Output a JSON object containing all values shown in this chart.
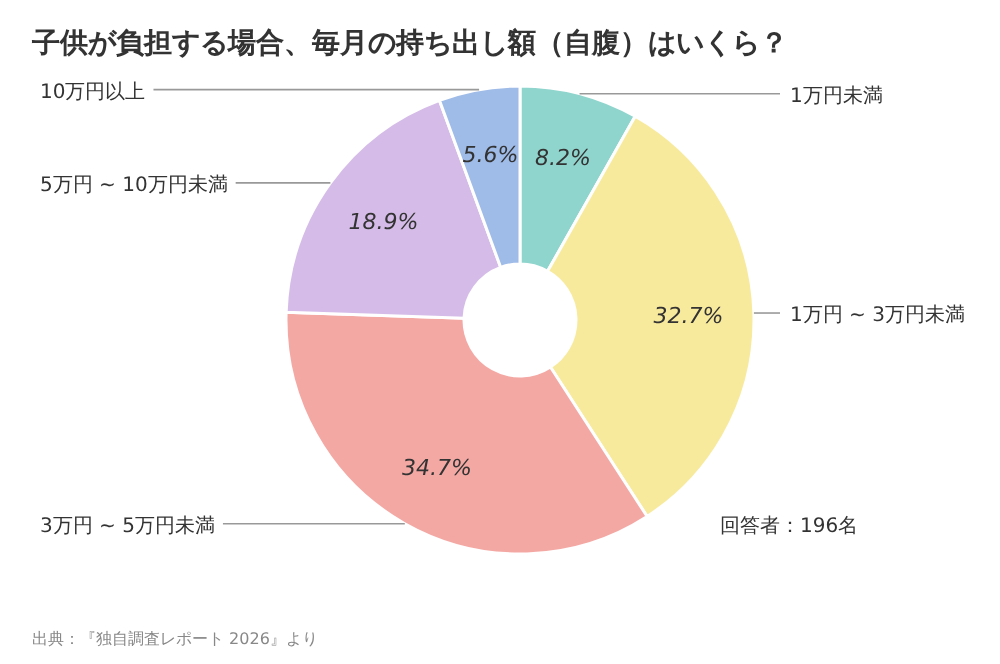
{
  "chart_data": {
    "type": "donut",
    "title": "子供が負担する場合、毎月の持ち出し額（自腹）はいくら？",
    "categories": [
      "1万円未満",
      "1万円 ~ 3万円未満",
      "3万円 ~ 5万円未満",
      "5万円 ~ 10万円未満",
      "10万円以上"
    ],
    "values": [
      8.2,
      32.7,
      34.7,
      18.9,
      5.6
    ],
    "value_labels": [
      "8.2%",
      "32.7%",
      "34.7%",
      "18.9%",
      "5.6%"
    ],
    "colors": [
      "#8fd5cd",
      "#f8ea9d",
      "#f4a8a4",
      "#d5bce8",
      "#9fbbe8"
    ],
    "annotations": [
      "回答者：196名",
      "出典：『独自調査レポート 2026』より"
    ]
  }
}
